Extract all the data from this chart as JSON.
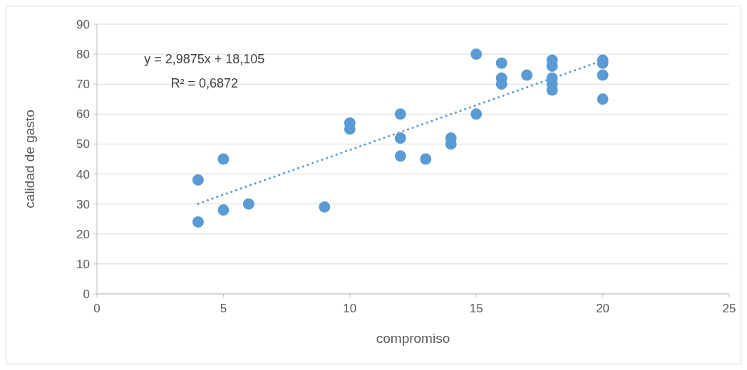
{
  "chart_data": {
    "type": "scatter",
    "xlabel": "compromiso",
    "ylabel": "calidad de gasto",
    "xlim": [
      0,
      25
    ],
    "xticks": [
      0,
      5,
      10,
      15,
      20,
      25
    ],
    "ylim": [
      0,
      90
    ],
    "yticks": [
      0,
      10,
      20,
      30,
      40,
      50,
      60,
      70,
      80,
      90
    ],
    "grid": "y",
    "marker": "circle",
    "annotations": [
      "y = 2,9875x + 18,105",
      "R² = 0,6872"
    ],
    "series": [
      {
        "color": "#5b9bd5",
        "x": [
          4,
          4,
          5,
          5,
          6,
          9,
          10,
          10,
          12,
          12,
          12,
          13,
          14,
          14,
          15,
          15,
          16,
          16,
          16,
          17,
          18,
          18,
          18,
          18,
          18,
          20,
          20,
          20,
          20
        ],
        "values": [
          38,
          24,
          45,
          28,
          30,
          29,
          57,
          55,
          60,
          52,
          46,
          45,
          52,
          50,
          80,
          60,
          77,
          72,
          70,
          73,
          78,
          76,
          72,
          70,
          68,
          78,
          77,
          73,
          65
        ]
      },
      {
        "type": "line",
        "color": "#5b9bd5",
        "line_style": "dotted",
        "marker": "none",
        "x": [
          4,
          20
        ],
        "values": [
          30.1,
          77.9
        ]
      }
    ]
  }
}
